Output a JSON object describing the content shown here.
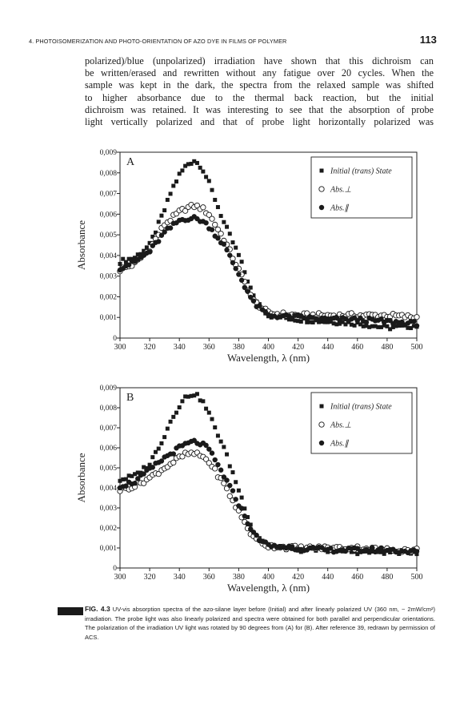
{
  "running_head": {
    "title": "4.  PHOTOISOMERIZATION AND PHOTO-ORIENTATION OF AZO DYE IN FILMS OF POLYMER",
    "page_number": "113"
  },
  "body_lines": [
    "polarized)/blue (unpolarized) irradiation have shown that this dichroism can",
    "be written/erased and rewritten without any fatigue over 20 cycles. When the",
    "sample was kept in the dark, the spectra from the relaxed sample was shifted",
    "to higher absorbance due to the thermal back reaction, but the initial",
    "dichroism was retained. It was interesting to see that the absorption of probe",
    "light vertically polarized and that of probe light horizontally polarized was"
  ],
  "caption": {
    "label": "FIG. 4.3",
    "text": "UV-vis absorption spectra of the azo-silane layer before (Initial) and after linearly polarized UV (360 nm, ~ 2mW/cm²) irradiation. The probe light was also linearly polarized and spectra were obtained for both parallel and perpendicular orientations. The polarization of the irradiation UV light was rotated by 90 degrees from (A) for (B). After reference 39, redrawn by permission of ACS."
  },
  "chart_data": [
    {
      "type": "scatter",
      "panel_label": "A",
      "xlabel": "Wavelength, λ (nm)",
      "ylabel": "Absorbance",
      "xlim": [
        300,
        500
      ],
      "ylim": [
        0,
        0.009
      ],
      "x_ticks": [
        "300",
        "320",
        "340",
        "360",
        "380",
        "400",
        "420",
        "440",
        "460",
        "480",
        "500"
      ],
      "y_ticks": [
        "0",
        "0,001",
        "0,002",
        "0,003",
        "0,004",
        "0,005",
        "0,006",
        "0,007",
        "0,008",
        "0,009"
      ],
      "legend_position": "top-right",
      "series": [
        {
          "name": "Initial (trans) State",
          "marker": "filled-square",
          "x": [
            300,
            310,
            320,
            330,
            335,
            340,
            345,
            350,
            355,
            360,
            370,
            380,
            390,
            400,
            420,
            440,
            460,
            480,
            500
          ],
          "y": [
            0.0037,
            0.0039,
            0.0045,
            0.0062,
            0.0072,
            0.0079,
            0.0084,
            0.0086,
            0.0083,
            0.0075,
            0.0056,
            0.004,
            0.002,
            0.0011,
            0.0009,
            0.0008,
            0.0007,
            0.0005,
            0.0006
          ]
        },
        {
          "name": "Abs.⊥",
          "marker": "open-circle",
          "x": [
            300,
            310,
            320,
            330,
            340,
            345,
            350,
            355,
            360,
            370,
            380,
            390,
            400,
            420,
            440,
            460,
            480,
            500
          ],
          "y": [
            0.0033,
            0.0036,
            0.0043,
            0.0055,
            0.0061,
            0.0063,
            0.0064,
            0.0063,
            0.006,
            0.0048,
            0.0033,
            0.0018,
            0.0012,
            0.0011,
            0.0011,
            0.0011,
            0.0011,
            0.001
          ]
        },
        {
          "name": "Abs.∥",
          "marker": "filled-circle",
          "x": [
            300,
            310,
            320,
            330,
            340,
            345,
            350,
            355,
            360,
            370,
            380,
            390,
            400,
            420,
            440,
            460,
            480,
            500
          ],
          "y": [
            0.0034,
            0.0037,
            0.0042,
            0.0051,
            0.0057,
            0.0058,
            0.0058,
            0.0057,
            0.0054,
            0.0045,
            0.0031,
            0.0017,
            0.0011,
            0.001,
            0.0009,
            0.0009,
            0.0008,
            0.0007
          ]
        }
      ]
    },
    {
      "type": "scatter",
      "panel_label": "B",
      "xlabel": "Wavelength, λ (nm)",
      "ylabel": "Absorbance",
      "xlim": [
        300,
        500
      ],
      "ylim": [
        0,
        0.009
      ],
      "x_ticks": [
        "300",
        "320",
        "340",
        "360",
        "380",
        "400",
        "420",
        "440",
        "460",
        "480",
        "500"
      ],
      "y_ticks": [
        "0",
        "0,001",
        "0,002",
        "0,003",
        "0,004",
        "0,005",
        "0,006",
        "0,007",
        "0,008",
        "0,009"
      ],
      "legend_position": "top-right",
      "series": [
        {
          "name": "Initial (trans) State",
          "marker": "filled-square",
          "x": [
            300,
            310,
            320,
            330,
            335,
            340,
            345,
            350,
            355,
            360,
            370,
            380,
            390,
            400,
            420,
            440,
            460,
            480,
            500
          ],
          "y": [
            0.0044,
            0.0046,
            0.0052,
            0.0066,
            0.0075,
            0.0081,
            0.0086,
            0.0087,
            0.0084,
            0.0077,
            0.006,
            0.0039,
            0.0018,
            0.0011,
            0.0009,
            0.0009,
            0.0008,
            0.0008,
            0.0008
          ]
        },
        {
          "name": "Abs.⊥",
          "marker": "open-circle",
          "x": [
            300,
            310,
            320,
            330,
            340,
            345,
            350,
            355,
            360,
            370,
            380,
            390,
            400,
            420,
            440,
            460,
            480,
            500
          ],
          "y": [
            0.0039,
            0.0041,
            0.0045,
            0.005,
            0.0055,
            0.0057,
            0.0057,
            0.0056,
            0.0053,
            0.0042,
            0.0028,
            0.0015,
            0.0011,
            0.001,
            0.001,
            0.001,
            0.0009,
            0.0009
          ]
        },
        {
          "name": "Abs.∥",
          "marker": "filled-circle",
          "x": [
            300,
            310,
            320,
            330,
            340,
            345,
            350,
            355,
            360,
            370,
            380,
            390,
            400,
            420,
            440,
            460,
            480,
            500
          ],
          "y": [
            0.0041,
            0.0043,
            0.0049,
            0.0055,
            0.006,
            0.0062,
            0.0063,
            0.0062,
            0.0059,
            0.0046,
            0.0032,
            0.0017,
            0.0011,
            0.001,
            0.0009,
            0.0009,
            0.0009,
            0.0008
          ]
        }
      ]
    }
  ]
}
